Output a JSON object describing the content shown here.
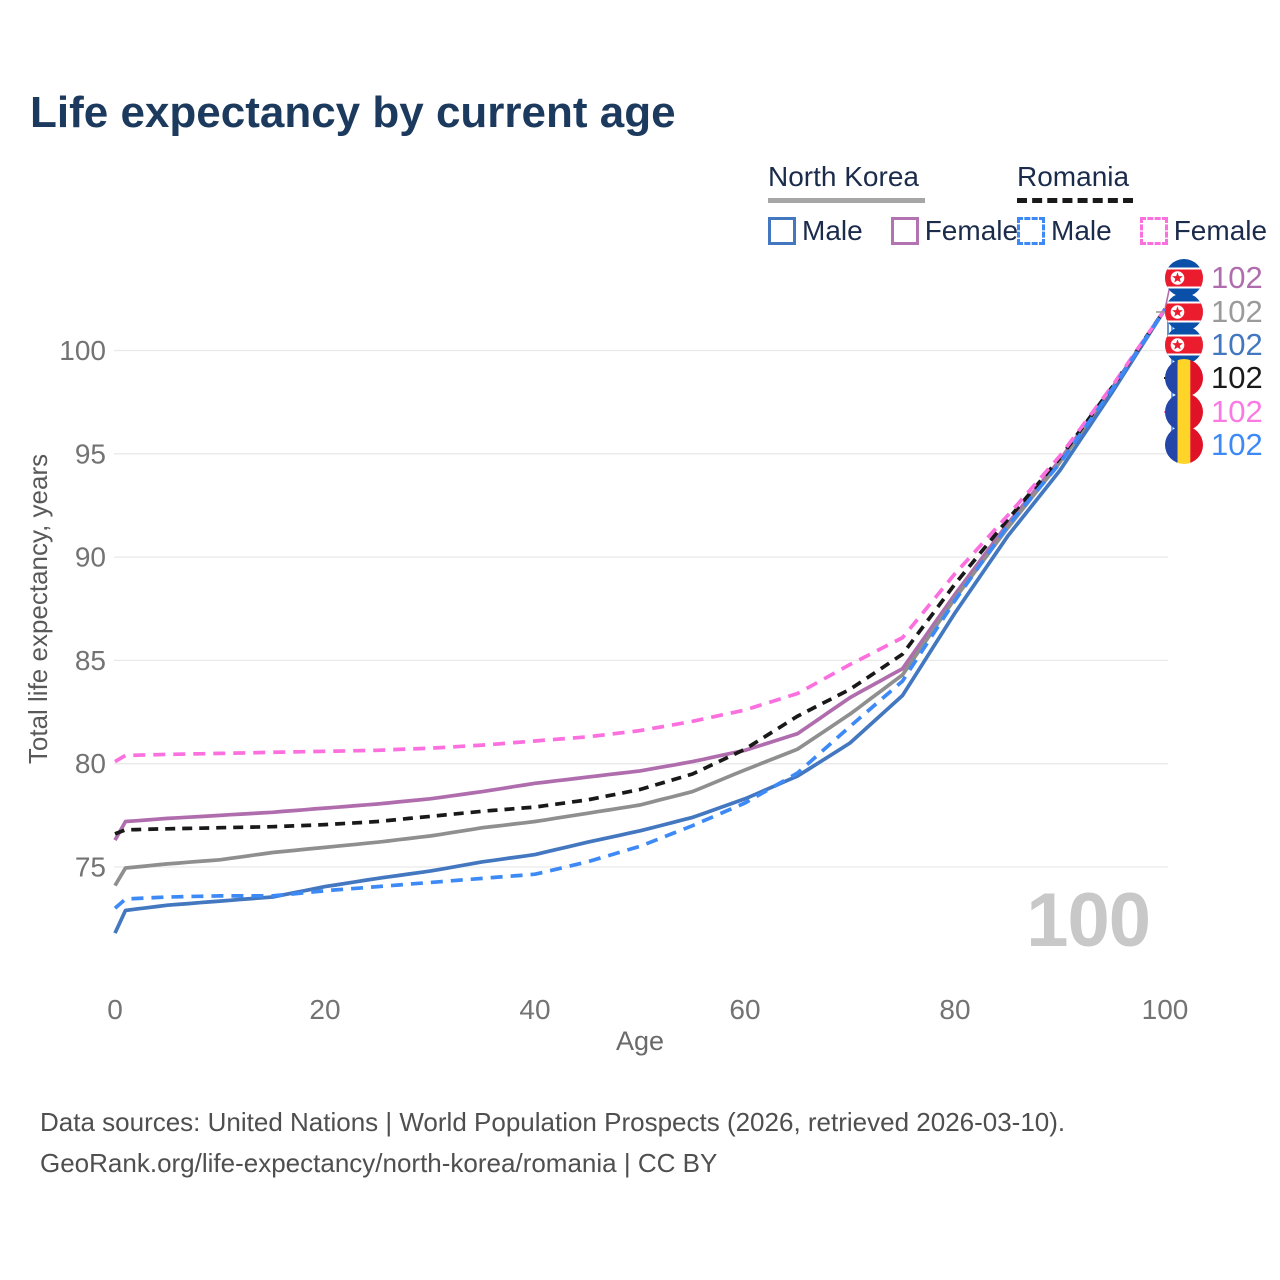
{
  "title": "Life expectancy by current age",
  "legend": {
    "groups": [
      {
        "country": "North Korea",
        "underline": "solid",
        "underline_color": "#a6a6a6",
        "items": [
          {
            "label": "Male",
            "color": "#4377bf",
            "dashed": false
          },
          {
            "label": "Female",
            "color": "#b273b0",
            "dashed": false
          }
        ]
      },
      {
        "country": "Romania",
        "underline": "dashed",
        "underline_color": "#1a1a1a",
        "items": [
          {
            "label": "Male",
            "color": "#3d8af7",
            "dashed": true
          },
          {
            "label": "Female",
            "color": "#fb6fdf",
            "dashed": true
          }
        ]
      }
    ]
  },
  "chart_data": {
    "type": "line",
    "title": "Life expectancy by current age",
    "xlabel": "Age",
    "ylabel": "Total life expectancy, years",
    "x_ticks": [
      0,
      20,
      40,
      60,
      80,
      100
    ],
    "y_ticks": [
      75,
      80,
      85,
      90,
      95,
      100
    ],
    "xlim": [
      0,
      100
    ],
    "ylim": [
      71,
      103
    ],
    "grid": "horizontal",
    "legend_position": "top-right",
    "age_watermark": "100",
    "ages": [
      0,
      1,
      5,
      10,
      15,
      20,
      25,
      30,
      35,
      40,
      45,
      50,
      55,
      60,
      65,
      70,
      75,
      80,
      85,
      90,
      95,
      100
    ],
    "series": [
      {
        "name": "North Korea Female",
        "country": "north-korea",
        "sex": "Female",
        "color": "#b06dae",
        "dashed": false,
        "values": [
          76.3,
          77.2,
          77.35,
          77.5,
          77.65,
          77.85,
          78.05,
          78.3,
          78.65,
          79.05,
          79.35,
          79.65,
          80.1,
          80.65,
          81.45,
          83.2,
          84.6,
          88.2,
          91.6,
          94.7,
          98.2,
          102
        ]
      },
      {
        "name": "North Korea All",
        "country": "north-korea",
        "sex": "All",
        "color": "#8f8f8f",
        "dashed": false,
        "values": [
          74.1,
          74.95,
          75.15,
          75.35,
          75.7,
          75.95,
          76.2,
          76.5,
          76.9,
          77.2,
          77.6,
          78.0,
          78.65,
          79.7,
          80.7,
          82.4,
          84.3,
          88.0,
          91.4,
          94.6,
          98.1,
          102
        ]
      },
      {
        "name": "North Korea Male",
        "country": "north-korea",
        "sex": "Male",
        "color": "#4377bf",
        "dashed": false,
        "values": [
          71.8,
          72.9,
          73.15,
          73.35,
          73.55,
          74.05,
          74.45,
          74.8,
          75.25,
          75.6,
          76.2,
          76.75,
          77.4,
          78.3,
          79.4,
          81.0,
          83.3,
          87.3,
          91.0,
          94.2,
          98.0,
          102
        ]
      },
      {
        "name": "Romania All",
        "country": "romania",
        "sex": "All",
        "color": "#191919",
        "dashed": true,
        "values": [
          76.6,
          76.8,
          76.85,
          76.9,
          76.95,
          77.05,
          77.2,
          77.45,
          77.7,
          77.9,
          78.25,
          78.75,
          79.5,
          80.7,
          82.3,
          83.6,
          85.3,
          88.7,
          91.8,
          94.8,
          98.25,
          102
        ]
      },
      {
        "name": "Romania Female",
        "country": "romania",
        "sex": "Female",
        "color": "#fb6fdf",
        "dashed": true,
        "values": [
          80.1,
          80.4,
          80.45,
          80.5,
          80.55,
          80.6,
          80.65,
          80.75,
          80.9,
          81.1,
          81.3,
          81.6,
          82.05,
          82.6,
          83.4,
          84.8,
          86.1,
          89.2,
          92.0,
          94.9,
          98.3,
          102
        ]
      },
      {
        "name": "Romania Male",
        "country": "romania",
        "sex": "Male",
        "color": "#3d8af7",
        "dashed": true,
        "values": [
          73.0,
          73.45,
          73.55,
          73.6,
          73.6,
          73.85,
          74.05,
          74.25,
          74.45,
          74.65,
          75.25,
          76.0,
          77.0,
          78.1,
          79.55,
          81.8,
          84.0,
          87.9,
          91.5,
          94.55,
          98.15,
          102
        ]
      }
    ],
    "end_labels": [
      {
        "flag": "north-korea",
        "value": "102",
        "color": "#b06dae"
      },
      {
        "flag": "north-korea",
        "value": "102",
        "color": "#9b9b9b"
      },
      {
        "flag": "north-korea",
        "value": "102",
        "color": "#4377bf"
      },
      {
        "flag": "romania",
        "value": "102",
        "color": "#1a1a1a"
      },
      {
        "flag": "romania",
        "value": "102",
        "color": "#fb79e3"
      },
      {
        "flag": "romania",
        "value": "102",
        "color": "#3d8af7"
      }
    ],
    "flag_colors": {
      "north_korea": {
        "blue": "#0a4fa8",
        "red": "#eb1c2d",
        "white": "#ffffff"
      },
      "romania": {
        "blue": "#2446a8",
        "yellow": "#ffd428",
        "red": "#e01227"
      }
    }
  },
  "footer": {
    "line1": "Data sources: United Nations | World Population Prospects (2026, retrieved 2026-03-10).",
    "line2": "GeoRank.org/life-expectancy/north-korea/romania | CC BY"
  }
}
